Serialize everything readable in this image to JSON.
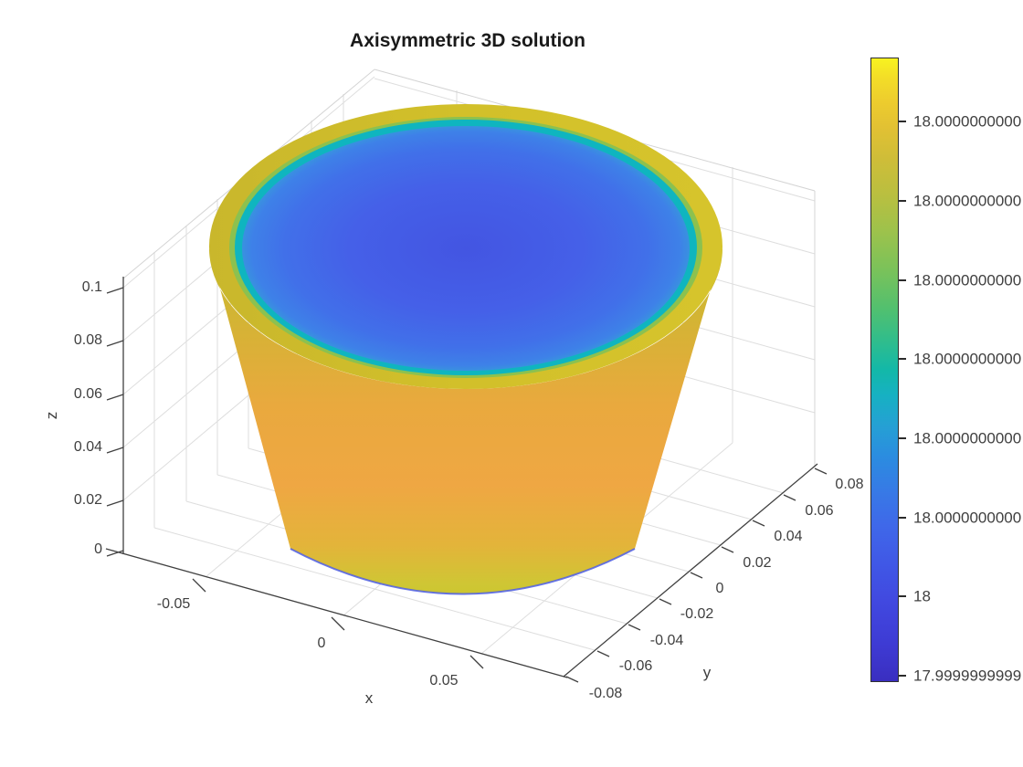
{
  "title": "Axisymmetric 3D solution",
  "axes": {
    "x": {
      "label": "x",
      "tick_labels": [
        "-0.05",
        "0",
        "0.05"
      ]
    },
    "y": {
      "label": "y",
      "tick_labels": [
        "0.08",
        "0.06",
        "0.04",
        "0.02",
        "0",
        "-0.02",
        "-0.04",
        "-0.06",
        "-0.08"
      ]
    },
    "z": {
      "label": "z",
      "tick_labels": [
        "0.1",
        "0.08",
        "0.06",
        "0.04",
        "0.02",
        "0"
      ]
    }
  },
  "colorbar": {
    "tick_labels": [
      "18.0000000000",
      "18.0000000000",
      "18.0000000000",
      "18.0000000000",
      "18.0000000000",
      "18.0000000000",
      "18",
      "17.9999999999"
    ],
    "note": "labels truncated at right image edge",
    "colormap": "parula",
    "top_color": "#f8f320",
    "bottom_color": "#3a2ec0"
  },
  "colors": {
    "surface_body_orange": "#efa743",
    "surface_rim_yellow": "#cdba2c",
    "top_face_blue": "#4355e2",
    "transition_ring_teal": "#0fb5bf",
    "bottom_edge_blue": "#4f5fe6",
    "axis": "#404040",
    "grid": "#dedede",
    "background": "#ffffff"
  },
  "chart_data": {
    "type": "surface",
    "title": "Axisymmetric 3D solution",
    "xlabel": "x",
    "ylabel": "y",
    "zlabel": "z",
    "xlim": [
      -0.08,
      0.08
    ],
    "ylim": [
      -0.08,
      0.08
    ],
    "zlim": [
      0,
      0.1
    ],
    "x_ticks": [
      -0.05,
      0,
      0.05
    ],
    "y_ticks": [
      0.08,
      0.06,
      0.04,
      0.02,
      0,
      -0.02,
      -0.04,
      -0.06,
      -0.08
    ],
    "z_ticks": [
      0.1,
      0.08,
      0.06,
      0.04,
      0.02,
      0
    ],
    "geometry": "truncated cone (bucket): radius ~0.05 at z=0 widening to ~0.08 at z=0.1, height 0.1",
    "solution": "u ~ 18 everywhere; colorbar spans 17.9999999999 to 18.0000000000 with 8 evenly spaced ticks",
    "surface_coloring": "outer wall and rim near upper end of range (yellow/orange); top interior disk near 18 (royal blue) with teal transition ring",
    "colormap": "parula",
    "view": "MATLAB default 3D view (az -37.5 deg, el 30 deg), grid on"
  }
}
